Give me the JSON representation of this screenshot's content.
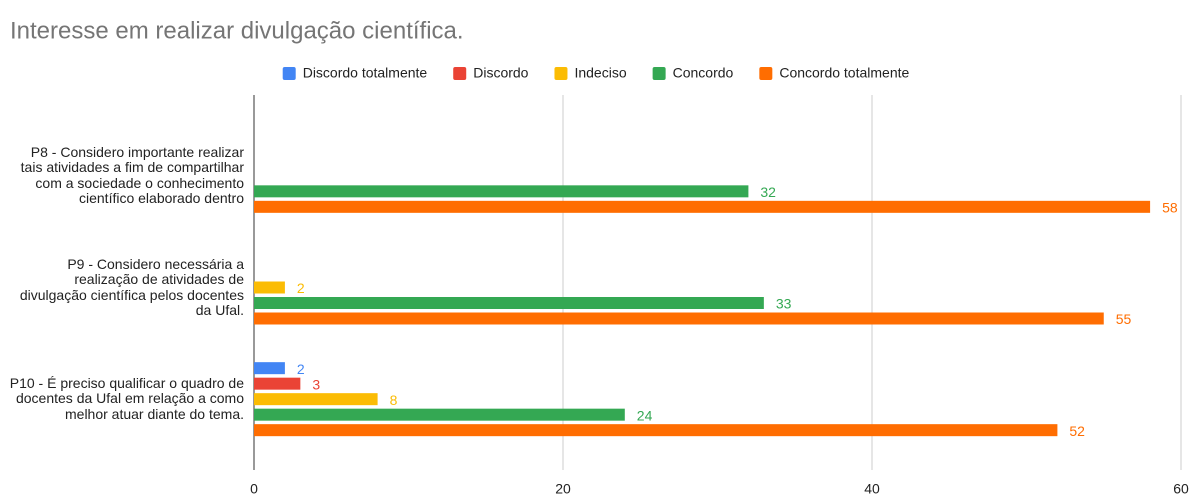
{
  "chart_data": {
    "type": "hbar",
    "title": "Interesse em realizar divulgação científica.",
    "categories": [
      "P8 - Considero importante realizar tais atividades a fim de compartilhar com a sociedade o conhecimento científico elaborado dentro",
      "P9 - Considero necessária a realização de atividades de divulgação científica pelos docentes da Ufal.",
      "P10 - É preciso qualificar o quadro de docentes da Ufal em relação a como melhor atuar diante do tema."
    ],
    "series": [
      {
        "name": "Discordo totalmente",
        "color": "#4285f4",
        "values": [
          null,
          null,
          2
        ]
      },
      {
        "name": "Discordo",
        "color": "#ea4335",
        "values": [
          null,
          null,
          3
        ]
      },
      {
        "name": "Indeciso",
        "color": "#fbbc04",
        "values": [
          null,
          2,
          8
        ]
      },
      {
        "name": "Concordo",
        "color": "#34a853",
        "values": [
          32,
          33,
          24
        ]
      },
      {
        "name": "Concordo totalmente",
        "color": "#ff6d01",
        "values": [
          58,
          55,
          52
        ]
      }
    ],
    "xlim": [
      0,
      60
    ],
    "xticks": [
      0,
      20,
      40,
      60
    ],
    "grid": true,
    "legend": "top"
  }
}
